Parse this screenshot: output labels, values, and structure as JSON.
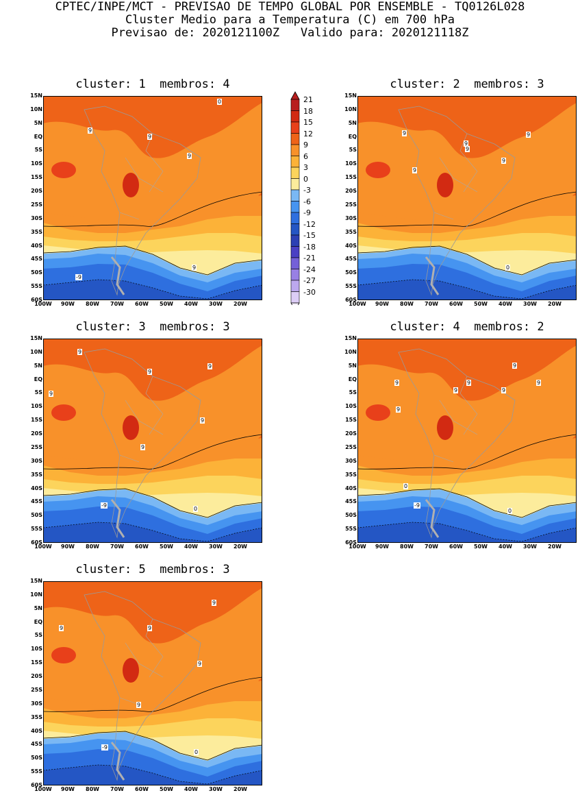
{
  "header": {
    "line1": "CPTEC/INPE/MCT - PREVISAO DE TEMPO GLOBAL POR ENSEMBLE - TQ0126L028",
    "line2": "Cluster Medio para a Temperatura (C) em 700 hPa",
    "line3": "Previsao de: 2020121100Z   Valido para: 2020121118Z"
  },
  "panels": [
    {
      "title": "cluster: 1  membros: 4",
      "labels": [
        "9",
        "9",
        "9",
        "9",
        "0",
        "-9"
      ]
    },
    {
      "title": "cluster: 2  membros: 3",
      "labels": [
        "9",
        "9",
        "9",
        "9",
        "9",
        "9",
        "0"
      ]
    },
    {
      "title": "cluster: 3  membros: 3",
      "labels": [
        "9",
        "9",
        "9",
        "9",
        "9",
        "9",
        "0",
        "-9"
      ]
    },
    {
      "title": "cluster: 4  membros: 2",
      "labels": [
        "9",
        "9",
        "9",
        "9",
        "9",
        "9",
        "9",
        "0",
        "0",
        "-9"
      ]
    },
    {
      "title": "cluster: 5  membros: 3",
      "labels": [
        "9",
        "9",
        "9",
        "9",
        "9",
        "0",
        "-9"
      ]
    }
  ],
  "lat_labels": [
    "15N",
    "10N",
    "5N",
    "EQ",
    "5S",
    "10S",
    "15S",
    "20S",
    "25S",
    "30S",
    "35S",
    "40S",
    "45S",
    "50S",
    "55S",
    "60S"
  ],
  "lon_labels": [
    "100W",
    "90W",
    "80W",
    "70W",
    "60W",
    "50W",
    "40W",
    "30W",
    "20W"
  ],
  "colorbar": {
    "levels": [
      "21",
      "18",
      "15",
      "12",
      "9",
      "6",
      "3",
      "0",
      "-3",
      "-6",
      "-9",
      "-12",
      "-15",
      "-18",
      "-21",
      "-24",
      "-27",
      "-30"
    ],
    "colors": [
      "#b81e1e",
      "#d22a12",
      "#e8401a",
      "#ee6318",
      "#f8912a",
      "#fcb238",
      "#fcd45c",
      "#fcec9c",
      "#7ab8f4",
      "#4694f0",
      "#2e6fdf",
      "#2456c4",
      "#2c40b4",
      "#4a40c4",
      "#7460d8",
      "#9880e4",
      "#bca8ee",
      "#dccdf6"
    ]
  }
}
